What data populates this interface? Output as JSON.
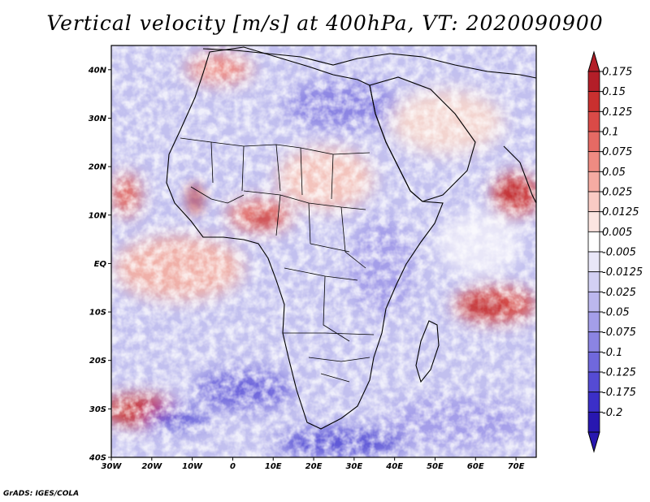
{
  "title": "Vertical velocity [m/s] at 400hPa, VT: 2020090900",
  "credit": "GrADS: IGES/COLA",
  "map": {
    "lat_labels": [
      "40N",
      "30N",
      "20N",
      "10N",
      "EQ",
      "10S",
      "20S",
      "30S",
      "40S"
    ],
    "lon_labels": [
      "30W",
      "20W",
      "10W",
      "0",
      "10E",
      "20E",
      "30E",
      "40E",
      "50E",
      "60E",
      "70E"
    ],
    "lon_range": [
      -30,
      75
    ],
    "lat_range": [
      -40,
      45
    ]
  },
  "colorbar": {
    "labels": [
      "0.175",
      "0.15",
      "0.125",
      "0.1",
      "0.075",
      "0.05",
      "0.025",
      "0.0125",
      "0.005",
      "-0.005",
      "-0.0125",
      "-0.025",
      "-0.05",
      "-0.075",
      "-0.1",
      "-0.125",
      "-0.175",
      "-0.2"
    ],
    "colors": [
      "#b31e28",
      "#c9302f",
      "#da4a47",
      "#e66a64",
      "#ef8b82",
      "#f5aba2",
      "#f9cbc4",
      "#fce5e1",
      "#ffffff",
      "#e9e7f8",
      "#d3d0f3",
      "#bcb7ee",
      "#a49ee9",
      "#8b84e3",
      "#7068dc",
      "#554bd4",
      "#3b2fc8",
      "#2817b0"
    ]
  }
}
